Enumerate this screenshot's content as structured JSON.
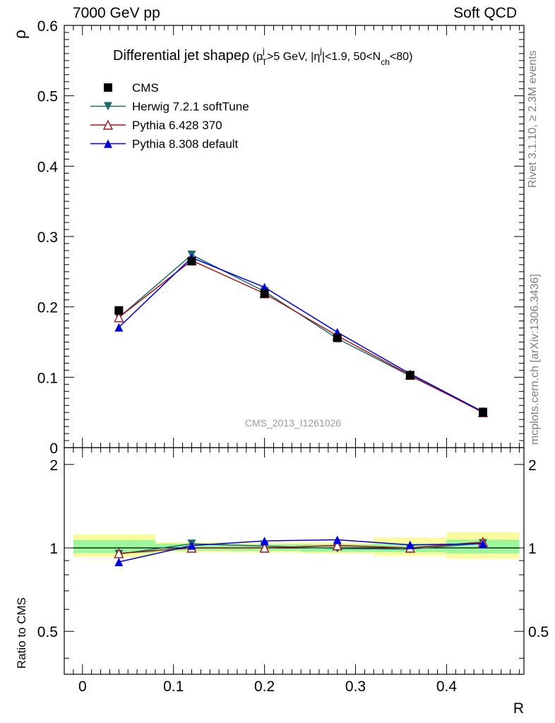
{
  "header": {
    "left": "7000 GeV pp",
    "right": "Soft QCD"
  },
  "side_labels": {
    "rivet": "Rivet 3.1.10, ≥ 2.3M events",
    "mcplots": "mcplots.cern.ch [arXiv:1306.3436]"
  },
  "watermark": "CMS_2013_I1261026",
  "colors": {
    "cms": "#000000",
    "herwig": "#1f6b6b",
    "pythia6": "#a31515",
    "pythia8": "#0000dd",
    "band_inner": "#9cf79c",
    "band_outer": "#fbfb9e"
  },
  "chart_data": [
    {
      "type": "line",
      "title": "Differential jet shape",
      "title_parts": {
        "main": "Differential jet shape",
        "rho": "ρ",
        "open": "(p",
        "pt_sup": "j",
        "pt_sub": "T",
        "pt_rest": ">5 GeV, |η",
        "eta_sup": "j",
        "eta_rest": "|<1.9, 50<N",
        "nch_sub": "ch",
        "close": "<80)"
      },
      "ylabel": "ρ",
      "xlabel": "R",
      "xlim": [
        -0.02,
        0.485
      ],
      "ylim": [
        0,
        0.6
      ],
      "yticks": [
        0,
        0.1,
        0.2,
        0.3,
        0.4,
        0.5,
        0.6
      ],
      "ytick_labels": [
        "0",
        "0.1",
        "0.2",
        "0.3",
        "0.4",
        "0.5",
        "0.6"
      ],
      "x": [
        0.04,
        0.12,
        0.2,
        0.28,
        0.36,
        0.44
      ],
      "legend_position": "top-left",
      "series": [
        {
          "name": "CMS",
          "key": "cms",
          "marker": "square",
          "values": [
            0.195,
            0.265,
            0.219,
            0.156,
            0.103,
            0.05
          ]
        },
        {
          "name": "Herwig 7.2.1 softTune",
          "key": "herwig",
          "marker": "triangle-down",
          "values": [
            0.185,
            0.274,
            0.222,
            0.155,
            0.102,
            0.051
          ]
        },
        {
          "name": "Pythia 6.428 370",
          "key": "pythia6",
          "marker": "triangle-open",
          "values": [
            0.185,
            0.266,
            0.219,
            0.159,
            0.103,
            0.05
          ]
        },
        {
          "name": "Pythia 8.308 default",
          "key": "pythia8",
          "marker": "triangle-up",
          "values": [
            0.171,
            0.27,
            0.228,
            0.164,
            0.105,
            0.051
          ]
        }
      ]
    },
    {
      "type": "line",
      "ylabel": "Ratio to CMS",
      "xlabel": "R",
      "xlim": [
        -0.02,
        0.485
      ],
      "ylim": [
        0.35,
        2.3
      ],
      "yticks": [
        0.5,
        1,
        2
      ],
      "ytick_labels": [
        "0.5",
        "1",
        "2"
      ],
      "xticks": [
        0,
        0.1,
        0.2,
        0.3,
        0.4
      ],
      "xtick_labels": [
        "0",
        "0.1",
        "0.2",
        "0.3",
        "0.4"
      ],
      "x": [
        0.04,
        0.12,
        0.2,
        0.28,
        0.36,
        0.44
      ],
      "bands": {
        "bins": [
          [
            -0.01,
            0.08
          ],
          [
            0.08,
            0.16
          ],
          [
            0.16,
            0.24
          ],
          [
            0.24,
            0.32
          ],
          [
            0.32,
            0.4
          ],
          [
            0.4,
            0.48
          ]
        ],
        "inner": [
          [
            0.958,
            1.068
          ],
          [
            0.978,
            1.036
          ],
          [
            0.975,
            1.03
          ],
          [
            0.968,
            1.03
          ],
          [
            0.965,
            1.035
          ],
          [
            0.955,
            1.07
          ]
        ],
        "outer": [
          [
            0.928,
            1.12
          ],
          [
            0.965,
            1.05
          ],
          [
            0.962,
            1.045
          ],
          [
            0.955,
            1.045
          ],
          [
            0.935,
            1.09
          ],
          [
            0.915,
            1.14
          ]
        ]
      },
      "series": [
        {
          "name": "Herwig 7.2.1 softTune",
          "key": "herwig",
          "marker": "triangle-down",
          "values": [
            0.95,
            1.035,
            1.015,
            0.995,
            0.99,
            1.04
          ]
        },
        {
          "name": "Pythia 6.428 370",
          "key": "pythia6",
          "marker": "triangle-open",
          "values": [
            0.955,
            1.0,
            1.0,
            1.02,
            1.0,
            1.05
          ]
        },
        {
          "name": "Pythia 8.308 default",
          "key": "pythia8",
          "marker": "triangle-up",
          "values": [
            0.89,
            1.02,
            1.06,
            1.07,
            1.025,
            1.035
          ]
        }
      ]
    }
  ]
}
